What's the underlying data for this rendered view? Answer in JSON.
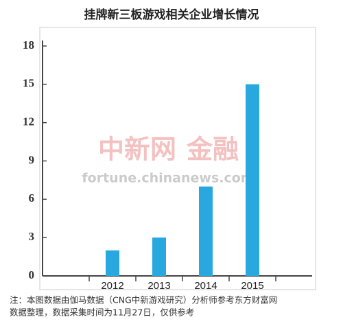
{
  "chart_data": {
    "type": "bar",
    "title": "挂牌新三板游戏相关企业增长情况",
    "categories": [
      "2012",
      "2013",
      "2014",
      "2015"
    ],
    "values": [
      2,
      3,
      7,
      15
    ],
    "color": "#29a8e0",
    "ylim": [
      0,
      18
    ],
    "yticks": [
      0,
      3,
      6,
      9,
      12,
      15,
      18
    ],
    "watermark": [
      "中新网",
      "金融",
      "fortune.chinanews.com"
    ],
    "note": [
      "注：本图数据由伽马数据（CNG中新游戏研究）分析师参考东方财富网",
      "数据整理，数据采集时间为11月27日，仅供参考"
    ]
  }
}
